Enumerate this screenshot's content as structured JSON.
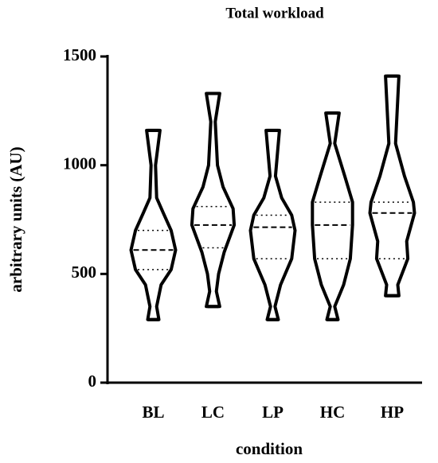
{
  "chart_data": {
    "type": "violin",
    "title": "Total workload",
    "x_label": "condition",
    "y_label": "arbitrary units (AU)",
    "categories": [
      "BL",
      "LC",
      "LP",
      "HC",
      "HP"
    ],
    "color": "#000000",
    "ylim": [
      0,
      1500
    ],
    "yticks": [
      0,
      500,
      1000,
      1500
    ],
    "violins": [
      {
        "min": 290,
        "max": 1160,
        "q1": 520,
        "median": 610,
        "q3": 700,
        "density": {
          "y": [
            290,
            350,
            450,
            520,
            610,
            700,
            780,
            850,
            1000,
            1160
          ],
          "width": [
            0.25,
            0.15,
            0.35,
            0.8,
            1.0,
            0.8,
            0.45,
            0.15,
            0.1,
            0.3
          ]
        }
      },
      {
        "min": 350,
        "max": 1330,
        "q1": 620,
        "median": 725,
        "q3": 810,
        "density": {
          "y": [
            350,
            420,
            500,
            600,
            725,
            800,
            900,
            1000,
            1200,
            1330
          ],
          "width": [
            0.3,
            0.15,
            0.25,
            0.5,
            0.95,
            0.9,
            0.45,
            0.2,
            0.1,
            0.3
          ]
        }
      },
      {
        "min": 290,
        "max": 1160,
        "q1": 570,
        "median": 715,
        "q3": 770,
        "density": {
          "y": [
            290,
            350,
            450,
            570,
            700,
            770,
            850,
            950,
            1160
          ],
          "width": [
            0.25,
            0.1,
            0.35,
            0.85,
            1.0,
            0.85,
            0.4,
            0.12,
            0.3
          ]
        }
      },
      {
        "min": 290,
        "max": 1240,
        "q1": 570,
        "median": 725,
        "q3": 830,
        "density": {
          "y": [
            290,
            350,
            450,
            570,
            725,
            830,
            950,
            1100,
            1240
          ],
          "width": [
            0.25,
            0.1,
            0.5,
            0.8,
            0.9,
            0.9,
            0.55,
            0.1,
            0.3
          ]
        }
      },
      {
        "min": 400,
        "max": 1410,
        "q1": 570,
        "median": 780,
        "q3": 830,
        "density": {
          "y": [
            400,
            450,
            570,
            650,
            780,
            830,
            950,
            1100,
            1410
          ],
          "width": [
            0.3,
            0.25,
            0.7,
            0.65,
            1.0,
            0.95,
            0.55,
            0.15,
            0.3
          ]
        }
      }
    ]
  }
}
